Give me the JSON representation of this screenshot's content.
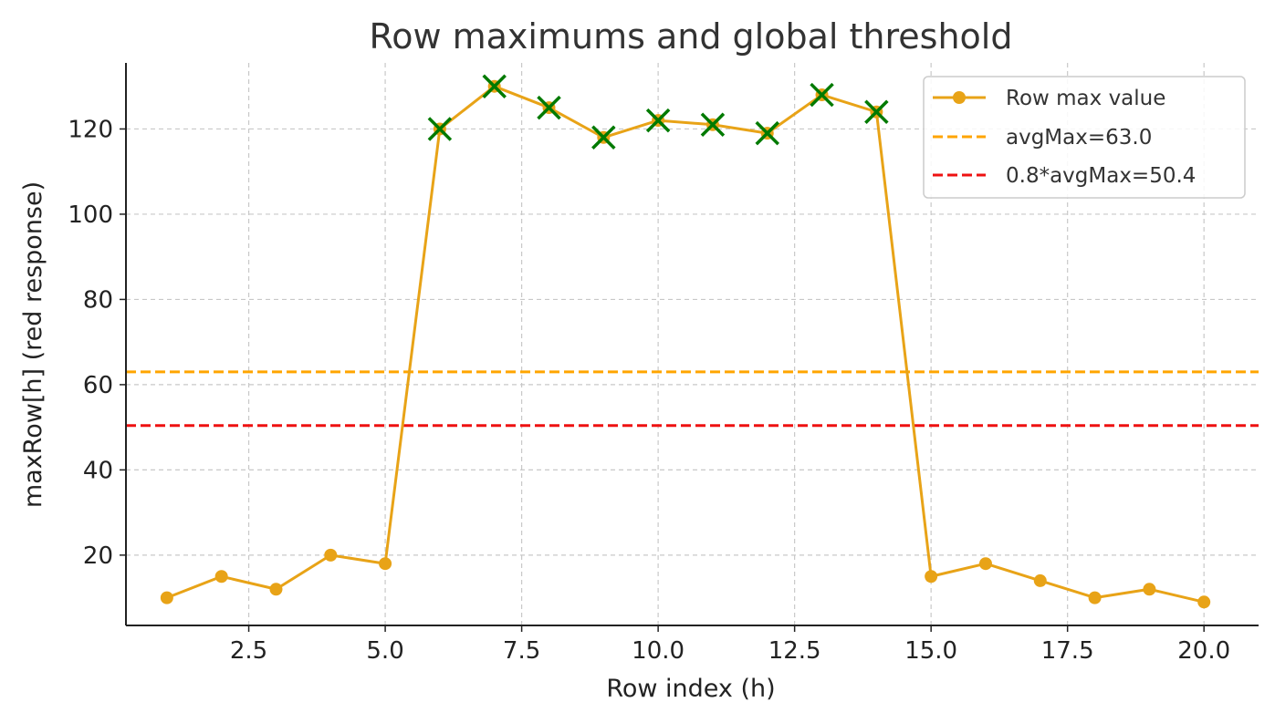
{
  "chart_data": {
    "type": "line",
    "title": "Row maximums and global threshold",
    "xlabel": "Row index (h)",
    "ylabel": "maxRow[h] (red response)",
    "xlim": [
      0.25,
      21.0
    ],
    "ylim": [
      3.5,
      135.5
    ],
    "grid": true,
    "legend_position": "top-right",
    "x_ticks": [
      2.5,
      5.0,
      7.5,
      10.0,
      12.5,
      15.0,
      17.5,
      20.0
    ],
    "x_tick_labels": [
      "2.5",
      "5.0",
      "7.5",
      "10.0",
      "12.5",
      "15.0",
      "17.5",
      "20.0"
    ],
    "y_ticks": [
      20,
      40,
      60,
      80,
      100,
      120
    ],
    "y_tick_labels": [
      "20",
      "40",
      "60",
      "80",
      "100",
      "120"
    ],
    "series": [
      {
        "name": "Row max value",
        "color": "#e8a317",
        "x": [
          1,
          2,
          3,
          4,
          5,
          6,
          7,
          8,
          9,
          10,
          11,
          12,
          13,
          14,
          15,
          16,
          17,
          18,
          19,
          20
        ],
        "y": [
          10,
          15,
          12,
          20,
          18,
          120,
          130,
          125,
          118,
          122,
          121,
          119,
          128,
          124,
          15,
          18,
          14,
          10,
          12,
          9
        ]
      }
    ],
    "highlighted_points": {
      "marker": "x",
      "color": "#007a00",
      "x": [
        6,
        7,
        8,
        9,
        10,
        11,
        12,
        13,
        14
      ],
      "y": [
        120,
        130,
        125,
        118,
        122,
        121,
        119,
        128,
        124
      ]
    },
    "reference_lines": [
      {
        "name": "avgMax=63.0",
        "value": 63.0,
        "color": "#ffa500",
        "style": "dashed"
      },
      {
        "name": "0.8*avgMax=50.4",
        "value": 50.4,
        "color": "#ee1111",
        "style": "dashed"
      }
    ]
  }
}
